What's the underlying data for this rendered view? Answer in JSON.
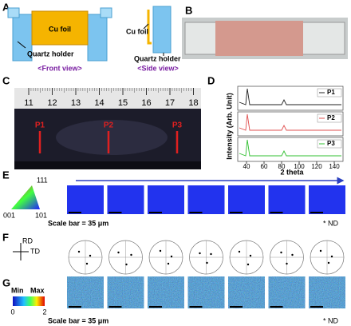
{
  "panel_a": {
    "label": "A",
    "front_foil": "Cu foil",
    "front_holder": "Quartz holder",
    "front_caption": "<Front view>",
    "side_foil": "Cu foil",
    "side_holder": "Quartz holder",
    "side_caption": "<Side view>"
  },
  "panel_b": {
    "label": "B"
  },
  "panel_c": {
    "label": "C",
    "ruler": [
      11,
      12,
      13,
      14,
      15,
      16,
      17,
      18
    ],
    "positions": [
      "P1",
      "P2",
      "P3"
    ]
  },
  "panel_d": {
    "label": "D",
    "y_label": "Intensity (Arb. Unit)",
    "x_label": "2 theta",
    "xlim": [
      30,
      150
    ],
    "xticks": [
      40,
      60,
      80,
      100,
      120,
      140
    ],
    "legend": [
      "P1",
      "P2",
      "P3"
    ]
  },
  "panel_e": {
    "label": "E",
    "ipf_labels": [
      "111",
      "001",
      "101"
    ],
    "scale_note": "Scale bar = 35 μm",
    "normal": "* ND"
  },
  "panel_f": {
    "label": "F",
    "axes": [
      "RD",
      "TD"
    ]
  },
  "panel_g": {
    "label": "G",
    "min_label": "Min",
    "max_label": "Max",
    "colorbar_ticks": [
      0,
      2
    ],
    "scale_note": "Scale bar = 35 μm",
    "normal": "* ND"
  }
}
